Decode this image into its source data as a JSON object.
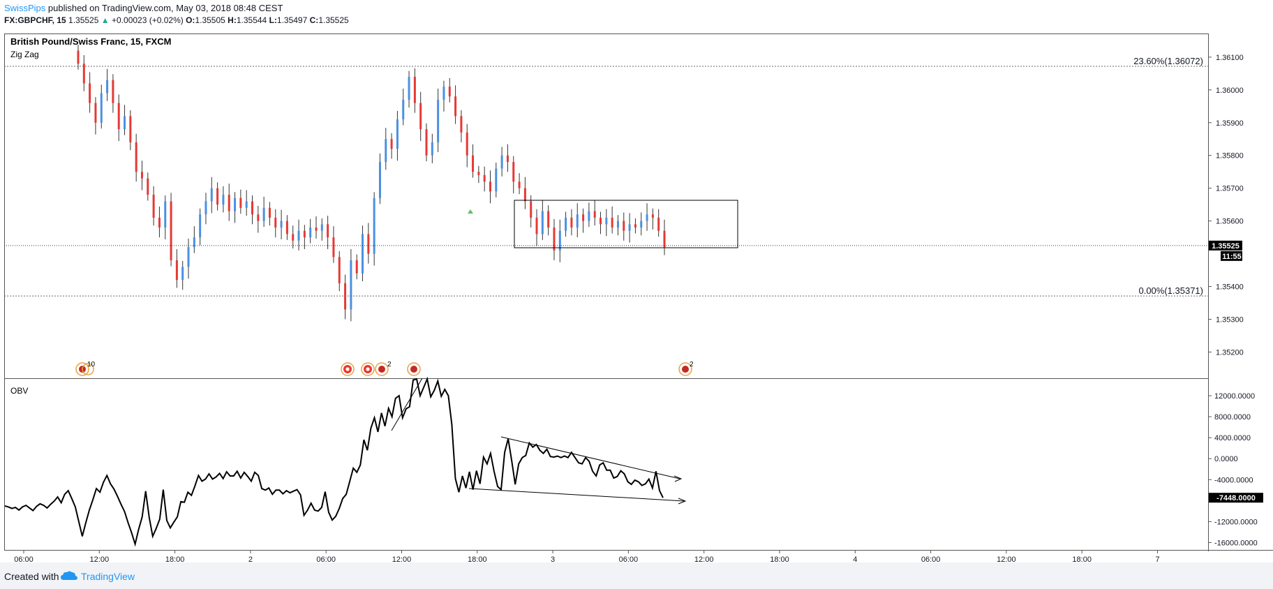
{
  "header": {
    "author": "SwissPips",
    "published": "published on TradingView.com, May 03, 2018 08:48 CEST",
    "symbol": "FX:GBPCHF, 15",
    "last": "1.35525",
    "change_arrow": "▲",
    "change": "+0.00023 (+0.02%)",
    "o_label": "O:",
    "o": "1.35505",
    "h_label": "H:",
    "h": "1.35544",
    "l_label": "L:",
    "l": "1.35497",
    "c_label": "C:",
    "c": "1.35525"
  },
  "colors": {
    "up": "#4a90e2",
    "down": "#e53935",
    "line": "#000000",
    "grid": "#808080",
    "link": "#2196f3"
  },
  "chart_data": [
    {
      "type": "candlestick",
      "title": "British Pound/Swiss Franc, 15, FXCM",
      "indicator": "Zig Zag",
      "ylim": [
        1.3512,
        1.3617
      ],
      "y_ticks": [
        "1.36100",
        "1.36000",
        "1.35900",
        "1.35800",
        "1.35700",
        "1.35600",
        "1.35400",
        "1.35300",
        "1.35200"
      ],
      "last_price": "1.35525",
      "countdown": "11:55",
      "fib_levels": [
        {
          "label": "23.60%(1.36072)",
          "value": 1.36072
        },
        {
          "label": "0.00%(1.35371)",
          "value": 1.35371
        }
      ],
      "close_series": [
        1.3608,
        1.3602,
        1.3596,
        1.359,
        1.3599,
        1.3603,
        1.3596,
        1.3588,
        1.3592,
        1.3584,
        1.3575,
        1.3573,
        1.3568,
        1.3561,
        1.3558,
        1.3566,
        1.3548,
        1.3542,
        1.3546,
        1.3552,
        1.3555,
        1.3562,
        1.3566,
        1.357,
        1.3565,
        1.3568,
        1.3563,
        1.3567,
        1.3564,
        1.3566,
        1.3562,
        1.356,
        1.3564,
        1.3561,
        1.3558,
        1.356,
        1.3556,
        1.3554,
        1.3557,
        1.3555,
        1.3558,
        1.3557,
        1.3559,
        1.3555,
        1.3549,
        1.3541,
        1.3533,
        1.3548,
        1.3544,
        1.3556,
        1.355,
        1.3567,
        1.3578,
        1.3585,
        1.3582,
        1.3591,
        1.3597,
        1.3604,
        1.3596,
        1.3588,
        1.358,
        1.3584,
        1.3597,
        1.3601,
        1.3598,
        1.3592,
        1.3587,
        1.358,
        1.3575,
        1.3574,
        1.3572,
        1.3569,
        1.3576,
        1.358,
        1.3578,
        1.3572,
        1.357,
        1.3566,
        1.3561,
        1.3556,
        1.3563,
        1.3558,
        1.3551,
        1.3557,
        1.3561,
        1.3558,
        1.3562,
        1.356,
        1.3563,
        1.3561,
        1.3559,
        1.3561,
        1.3558,
        1.356,
        1.3557,
        1.3559,
        1.3558,
        1.356,
        1.3562,
        1.3561,
        1.3557,
        1.3552
      ]
    },
    {
      "type": "line",
      "title": "OBV",
      "ylim": [
        -17400,
        15200
      ],
      "y_ticks": [
        "12000.0000",
        "8000.0000",
        "4000.0000",
        "0.0000",
        "-4000.0000",
        "-12000.0000",
        "-16000.0000"
      ],
      "last_value": "-7448.0000",
      "obv_series": [
        -9000,
        -9200,
        -9500,
        -9300,
        -9800,
        -9200,
        -8900,
        -9400,
        -9900,
        -9100,
        -8600,
        -8900,
        -9400,
        -8700,
        -8100,
        -7300,
        -8400,
        -6800,
        -6100,
        -7600,
        -9200,
        -12000,
        -14800,
        -12200,
        -9800,
        -7800,
        -5700,
        -6400,
        -4500,
        -3200,
        -4800,
        -5800,
        -7200,
        -8700,
        -10100,
        -12200,
        -14100,
        -16300,
        -13500,
        -11100,
        -6200,
        -11200,
        -14800,
        -13300,
        -11500,
        -5900,
        -11800,
        -13200,
        -12100,
        -11100,
        -8200,
        -8300,
        -6400,
        -7000,
        -5200,
        -3200,
        -4300,
        -3900,
        -2900,
        -3900,
        -3500,
        -2800,
        -3800,
        -2500,
        -3300,
        -3300,
        -2400,
        -3700,
        -2600,
        -3400,
        -4300,
        -2600,
        -3200,
        -5700,
        -6000,
        -5600,
        -6800,
        -6000,
        -6000,
        -6700,
        -6100,
        -6500,
        -6200,
        -5900,
        -6900,
        -10800,
        -9800,
        -8500,
        -9800,
        -10000,
        -9300,
        -6300,
        -10200,
        -11700,
        -11000,
        -9500,
        -7600,
        -6800,
        -4300,
        -1800,
        -2600,
        -1200,
        3600,
        1600,
        5800,
        7800,
        5100,
        8700,
        6200,
        9600,
        8000,
        11500,
        12000,
        7800,
        9500,
        9900,
        15000,
        16500,
        12000,
        13600,
        15500,
        11800,
        13000,
        14800,
        11900,
        13200,
        12000,
        6500,
        -3800,
        -6400,
        -3300,
        -5600,
        -2500,
        -5900,
        -2300,
        -4800,
        300,
        -1000,
        1000,
        -2400,
        -5300,
        -5900,
        1200,
        3800,
        -400,
        -4900,
        -1000,
        200,
        600,
        3000,
        2200,
        2700,
        1600,
        1000,
        1800,
        400,
        300,
        500,
        200,
        500,
        200,
        1200,
        200,
        -800,
        -1000,
        200,
        -500,
        -2400,
        -3300,
        -1200,
        -800,
        -2200,
        -2200,
        -3700,
        -3400,
        -2300,
        -2900,
        -4400,
        -4900,
        -4100,
        -4400,
        -5100,
        -4800,
        -3900,
        -5600,
        -2400,
        -6100,
        -7448
      ]
    }
  ],
  "time_axis": [
    "06:00",
    "12:00",
    "18:00",
    "2",
    "06:00",
    "12:00",
    "18:00",
    "3",
    "06:00",
    "12:00",
    "18:00",
    "4",
    "06:00",
    "12:00",
    "18:00",
    "7"
  ],
  "event_badges": [
    "10",
    "2",
    "2"
  ],
  "footer": {
    "created": "Created with",
    "brand": "TradingView"
  }
}
